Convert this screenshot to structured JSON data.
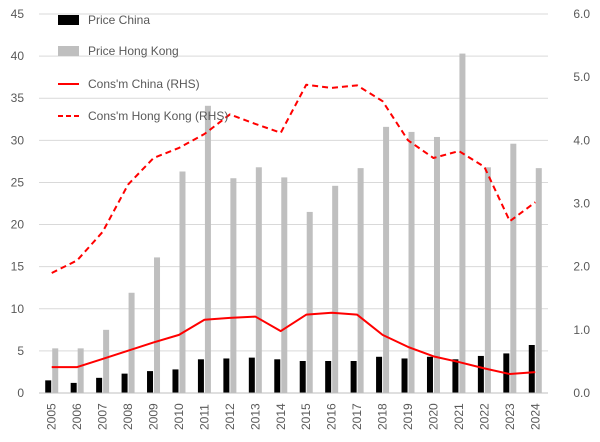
{
  "chart_data": {
    "type": "bar+line",
    "title": "",
    "categories": [
      "2005",
      "2006",
      "2007",
      "2008",
      "2009",
      "2010",
      "2011",
      "2012",
      "2013",
      "2014",
      "2015",
      "2016",
      "2017",
      "2018",
      "2019",
      "2020",
      "2021",
      "2022",
      "2023",
      "2024"
    ],
    "bar_series": [
      {
        "name": "Price China",
        "color": "#000000",
        "values": [
          1.5,
          1.2,
          1.8,
          2.3,
          2.6,
          2.8,
          4.0,
          4.1,
          4.2,
          4.0,
          3.8,
          3.8,
          3.8,
          4.3,
          4.1,
          4.3,
          4.0,
          4.4,
          4.7,
          5.7
        ]
      },
      {
        "name": "Price Hong Kong",
        "color": "#bfbfbf",
        "values": [
          5.3,
          5.3,
          7.5,
          11.9,
          16.1,
          26.3,
          34.1,
          25.5,
          26.8,
          25.6,
          21.5,
          24.6,
          26.7,
          31.6,
          31.0,
          30.4,
          40.3,
          26.8,
          29.6,
          26.7
        ]
      }
    ],
    "line_series": [
      {
        "name": "Cons'm China (RHS)",
        "color": "#ff0000",
        "dash": "solid",
        "values": [
          0.41,
          0.41,
          0.54,
          0.67,
          0.8,
          0.92,
          1.16,
          1.19,
          1.21,
          0.98,
          1.24,
          1.27,
          1.24,
          0.92,
          0.73,
          0.58,
          0.49,
          0.39,
          0.3,
          0.33
        ]
      },
      {
        "name": "Cons'm Hong Kong (RHS)",
        "color": "#ff0000",
        "dash": "dashed",
        "values": [
          1.9,
          2.1,
          2.55,
          3.3,
          3.72,
          3.88,
          4.1,
          4.41,
          4.26,
          4.12,
          4.88,
          4.83,
          4.87,
          4.62,
          4.0,
          3.72,
          3.83,
          3.58,
          2.72,
          3.02
        ]
      }
    ],
    "y_left": {
      "min": 0,
      "max": 45,
      "step": 5,
      "ticks": [
        "0",
        "5",
        "10",
        "15",
        "20",
        "25",
        "30",
        "35",
        "40",
        "45"
      ]
    },
    "y_right": {
      "min": 0,
      "max": 6,
      "step": 1,
      "ticks": [
        "0.0",
        "1.0",
        "2.0",
        "3.0",
        "4.0",
        "5.0",
        "6.0"
      ]
    },
    "grid": true,
    "legend_position": "top-left"
  }
}
